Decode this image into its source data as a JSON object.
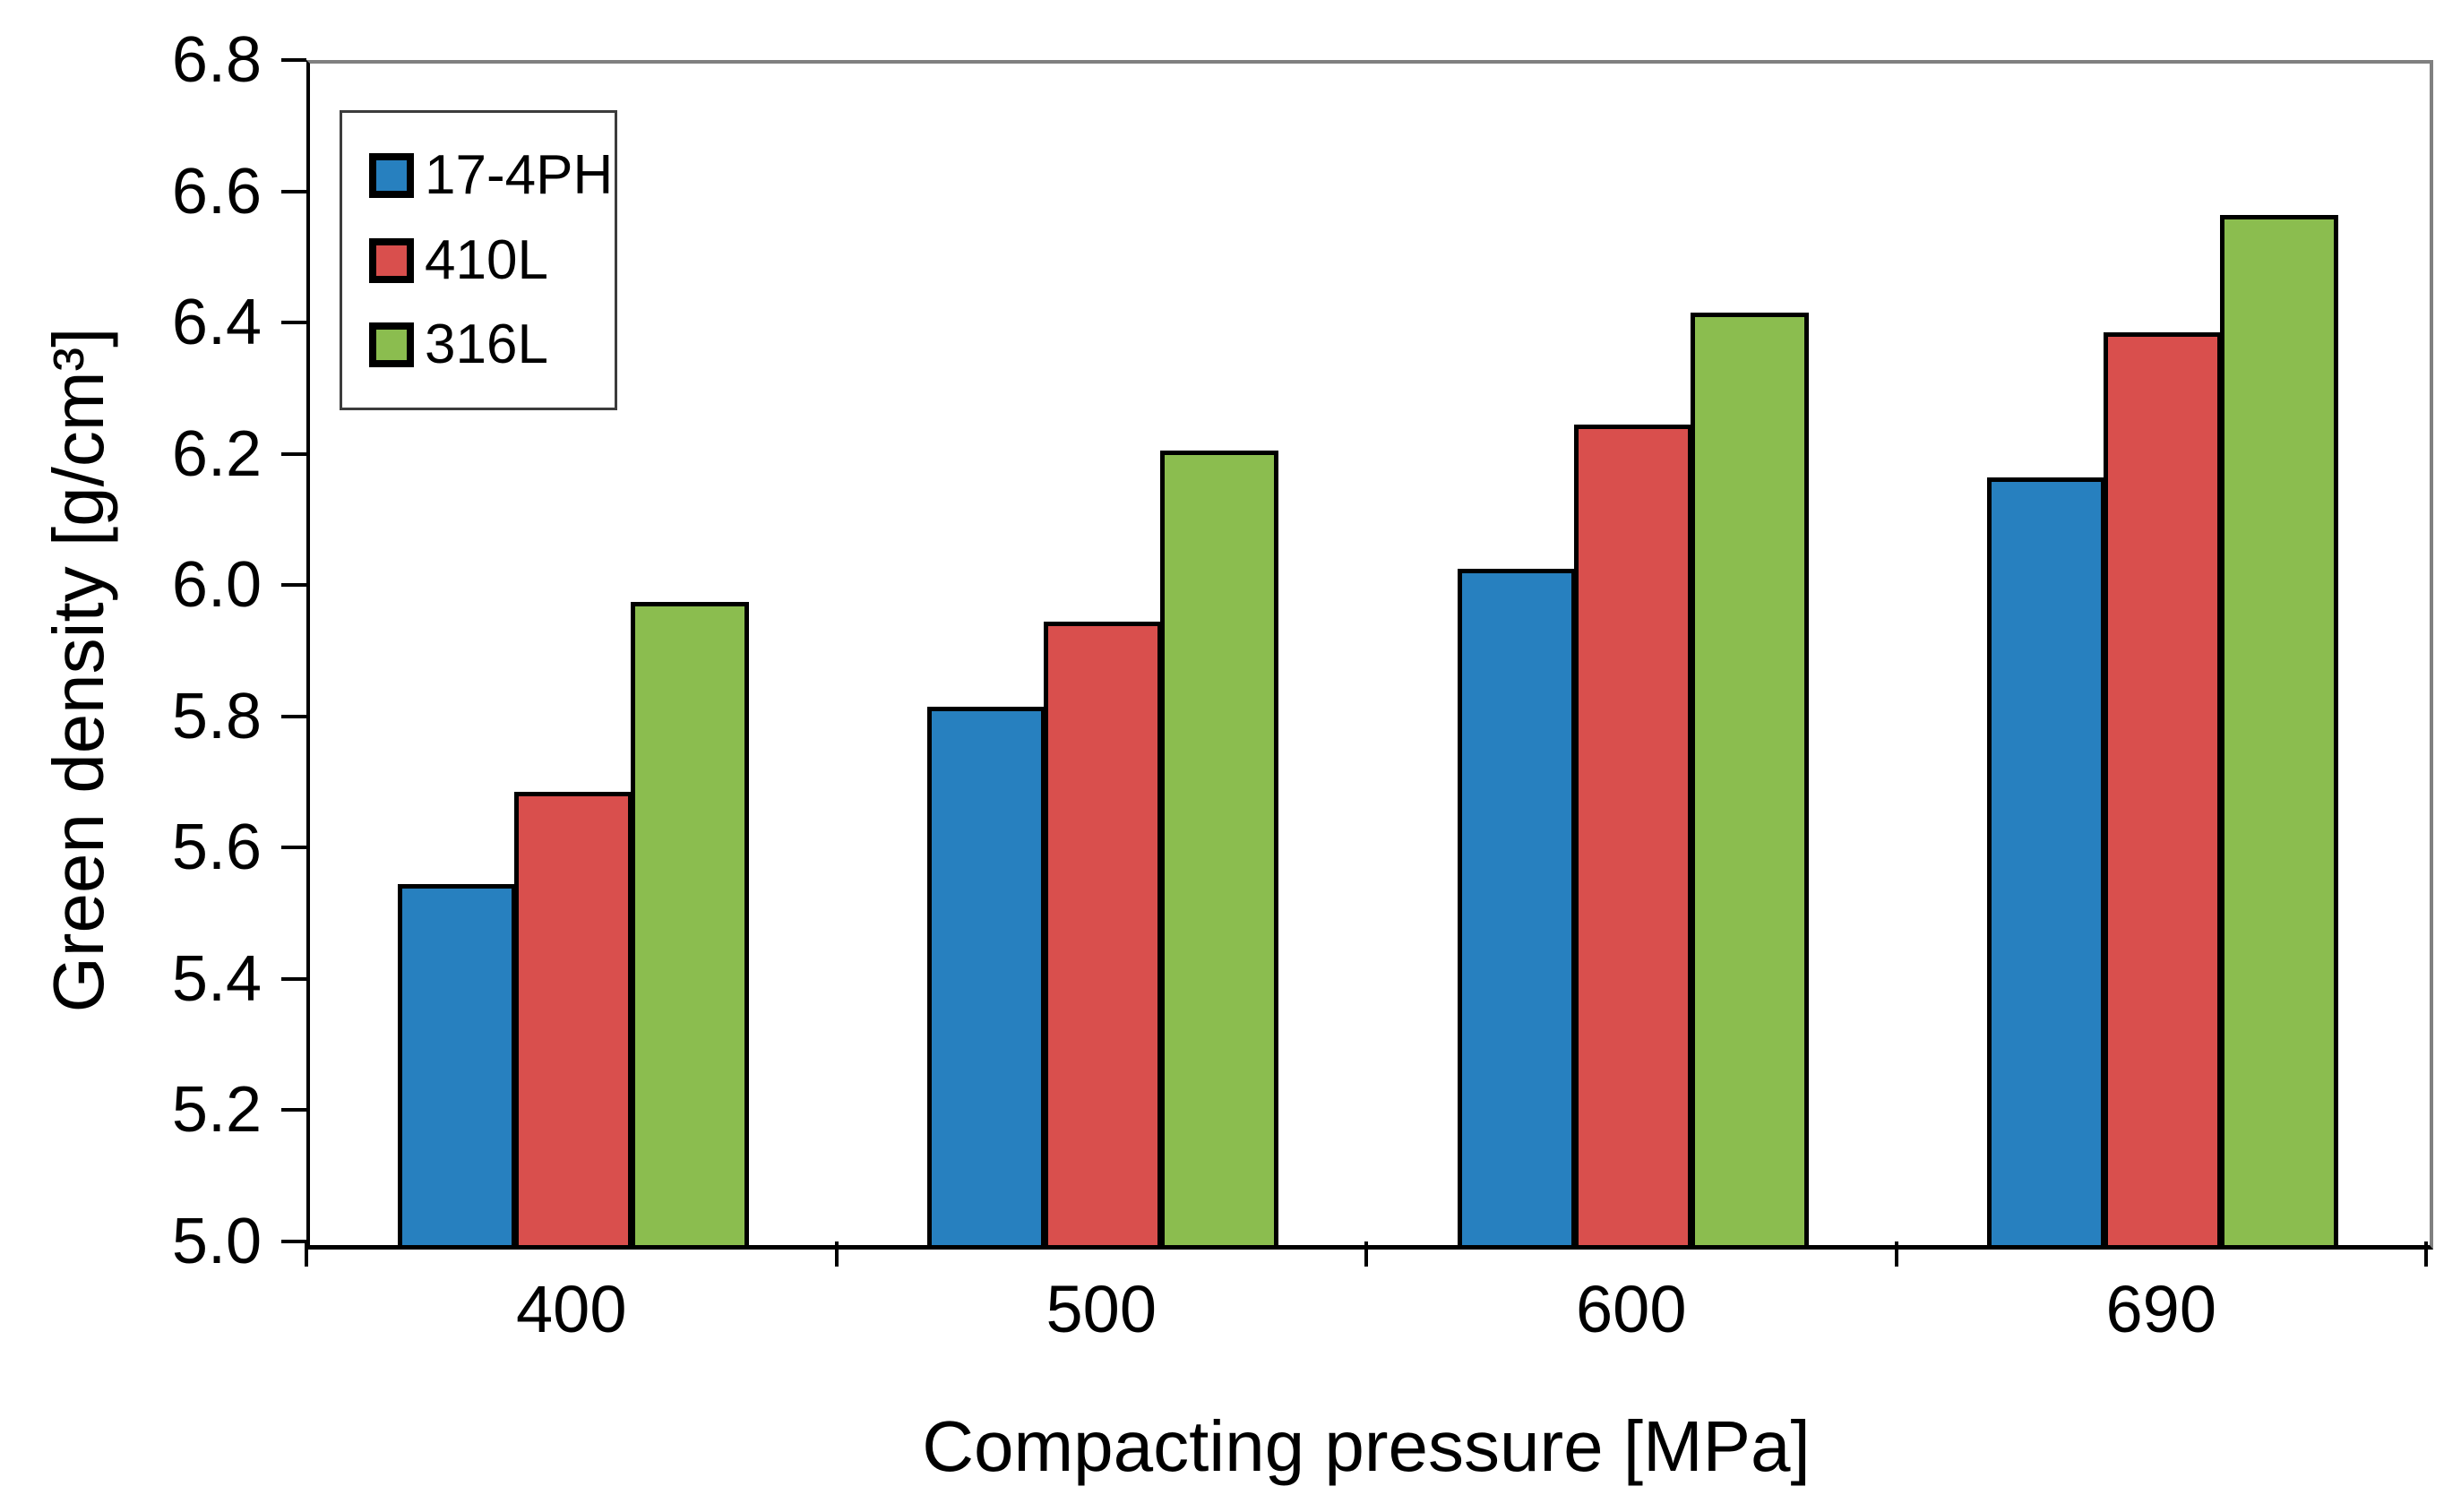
{
  "chart_data": {
    "type": "bar",
    "title": "",
    "xlabel": "Compacting pressure [MPa]",
    "ylabel": "Green density [g/cm³]",
    "categories": [
      "400",
      "500",
      "600",
      "690"
    ],
    "series": [
      {
        "name": "17-4PH",
        "color": "#2780BF",
        "values": [
          5.55,
          5.82,
          6.03,
          6.17
        ]
      },
      {
        "name": "410L",
        "color": "#D94F4D",
        "values": [
          5.69,
          5.95,
          6.25,
          6.39
        ]
      },
      {
        "name": "316L",
        "color": "#8BBD4F",
        "values": [
          5.98,
          6.21,
          6.42,
          6.57
        ]
      }
    ],
    "ylim": [
      5.0,
      6.8
    ],
    "ytick_step": 0.2,
    "ytick_decimals": 1,
    "grid": "off",
    "legend_position": "inside-top-left",
    "bar_border_color": "#000000",
    "axis_color": "#000000",
    "frame_color": "#808080",
    "background_color": "#ffffff"
  }
}
